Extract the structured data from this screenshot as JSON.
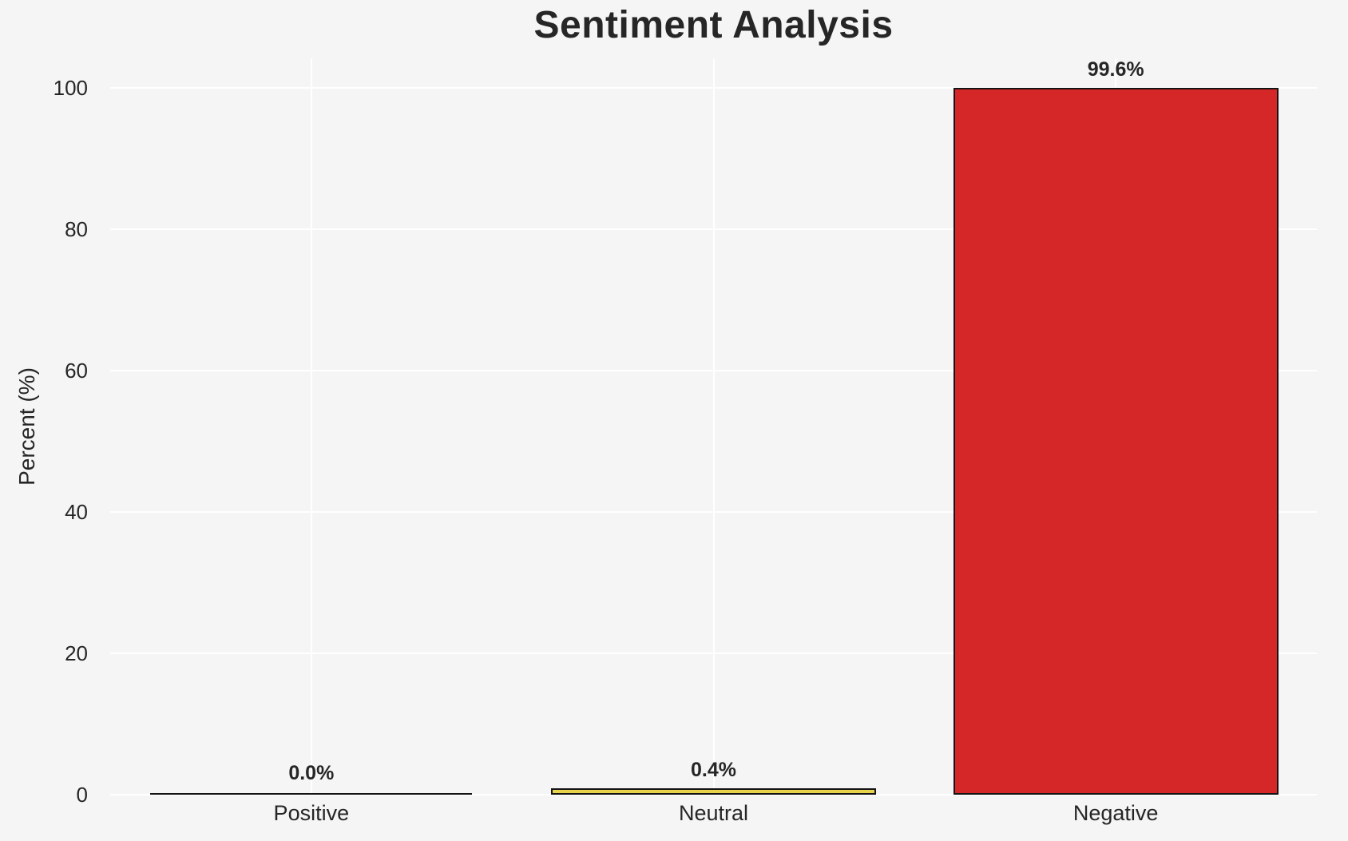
{
  "chart_data": {
    "type": "bar",
    "title": "Sentiment Analysis",
    "xlabel": "",
    "ylabel": "Percent (%)",
    "categories": [
      "Positive",
      "Neutral",
      "Negative"
    ],
    "values": [
      0.0,
      0.4,
      99.6
    ],
    "value_labels": [
      "0.0%",
      "0.4%",
      "99.6%"
    ],
    "bar_colors": [
      "#2ca02c",
      "#e8d44c",
      "#d62728"
    ],
    "bar_edge_color": "#141414",
    "yticks": [
      0,
      20,
      40,
      60,
      80,
      100
    ],
    "ytick_labels": [
      "0",
      "20",
      "40",
      "60",
      "80",
      "100"
    ],
    "ylim": [
      0,
      104.2
    ],
    "bar_width_fraction": 0.8,
    "grid": true,
    "legend_position": "none",
    "background_color": "#f5f5f6",
    "gridline_color": "#ffffff",
    "text_color": "#262626"
  }
}
